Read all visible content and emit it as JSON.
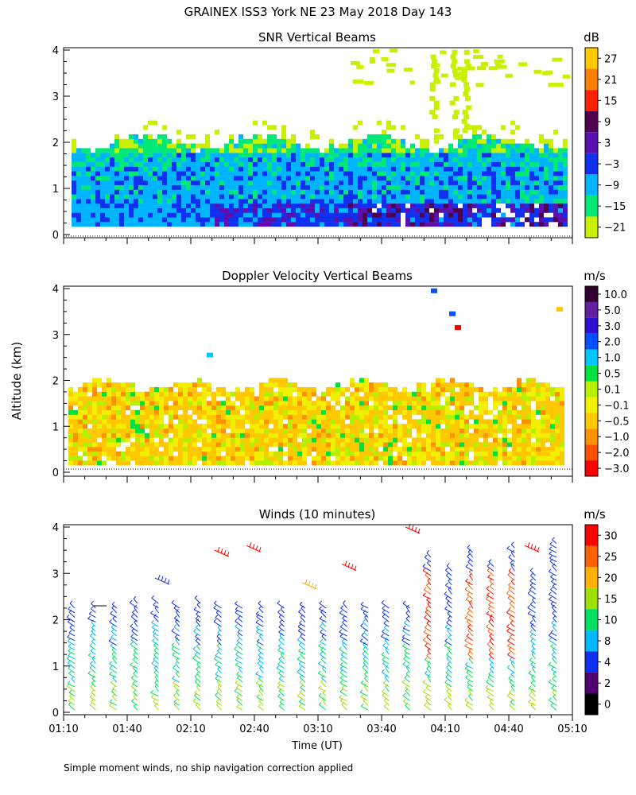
{
  "figure": {
    "title": "GRAINEX ISS3 York NE  23 May 2018 Day 143",
    "ylabel": "Altitude (km)",
    "xlabel": "Time (UT)",
    "footnote": "Simple moment winds, no ship navigation correction applied",
    "x_ticks": [
      "01:10",
      "01:40",
      "02:10",
      "02:40",
      "03:10",
      "03:40",
      "04:10",
      "04:40",
      "05:10"
    ],
    "y_ticks": [
      "0",
      "1",
      "2",
      "3",
      "4"
    ]
  },
  "chart_data": [
    {
      "type": "heatmap",
      "title": "SNR Vertical Beams",
      "xlabel": "Time (UT)",
      "ylabel": "Altitude (km)",
      "x_range": [
        "01:10",
        "05:10"
      ],
      "ylim": [
        0,
        4
      ],
      "colorbar": {
        "unit": "dB",
        "labels": [
          "27",
          "21",
          "15",
          "9",
          "3",
          "−3",
          "−9",
          "−15",
          "−21"
        ],
        "colors": [
          "#ffc800",
          "#ff8000",
          "#ff2000",
          "#500050",
          "#5a10b0",
          "#1030f0",
          "#00b4ff",
          "#00e878",
          "#c8f000"
        ]
      },
      "description_levels": [
        {
          "range_km": [
            0.15,
            0.6
          ],
          "dominant_snr_db": "-3 to 9 (late period)"
        },
        {
          "range_km": [
            0.6,
            1.4
          ],
          "dominant_snr_db": "-9"
        },
        {
          "range_km": [
            1.4,
            2.0
          ],
          "dominant_snr_db": "-15"
        },
        {
          "range_km": [
            2.0,
            4.0
          ],
          "dominant_snr_db": "-21 (sparse)"
        }
      ]
    },
    {
      "type": "heatmap",
      "title": "Doppler Velocity Vertical Beams",
      "xlabel": "Time (UT)",
      "ylabel": "Altitude (km)",
      "x_range": [
        "01:10",
        "05:10"
      ],
      "ylim": [
        0,
        4
      ],
      "colorbar": {
        "unit": "m/s",
        "labels": [
          "10.0",
          "5.0",
          "3.0",
          "2.0",
          "1.0",
          "0.5",
          "0.1",
          "−0.1",
          "−0.5",
          "−1.0",
          "−2.0",
          "−3.0"
        ],
        "colors": [
          "#300030",
          "#6020a0",
          "#3010d0",
          "#0050ff",
          "#00c8ff",
          "#00e040",
          "#b4f000",
          "#f0f000",
          "#ffc800",
          "#ff9000",
          "#ff5000",
          "#ff0000"
        ]
      },
      "dominant_velocity_ms": "-0.5 to 0.1",
      "echo_top_km": 2.0
    },
    {
      "type": "scatter",
      "title": "Winds (10 minutes)",
      "xlabel": "Time (UT)",
      "ylabel": "Altitude (km)",
      "x_range": [
        "01:10",
        "05:10"
      ],
      "ylim": [
        0,
        4
      ],
      "profile_times": [
        "01:10",
        "01:20",
        "01:30",
        "01:40",
        "01:50",
        "02:00",
        "02:10",
        "02:20",
        "02:30",
        "02:40",
        "02:50",
        "03:00",
        "03:10",
        "03:20",
        "03:30",
        "03:40",
        "03:50",
        "04:00",
        "04:10",
        "04:20",
        "04:30",
        "04:40",
        "04:50",
        "05:00"
      ],
      "colorbar": {
        "unit": "m/s",
        "labels": [
          "30",
          "25",
          "20",
          "15",
          "10",
          "8",
          "4",
          "2",
          "0"
        ],
        "colors": [
          "#ff0000",
          "#ff6000",
          "#ffb000",
          "#a0e000",
          "#00e060",
          "#00b8ff",
          "#1030f0",
          "#500070",
          "#000000"
        ]
      }
    }
  ]
}
